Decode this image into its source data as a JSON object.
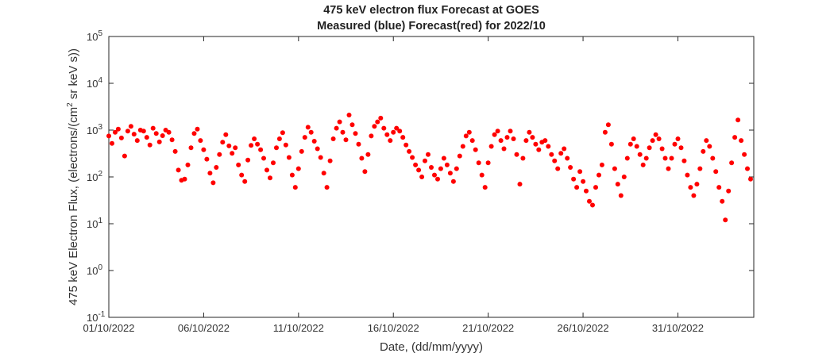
{
  "chart_data": {
    "type": "scatter",
    "title": "475 keV electron flux Forecast at GOES",
    "subtitle": "Measured (blue) Forecast(red) for 2022/10",
    "xlabel": "Date, (dd/mm/yyyy)",
    "ylabel": "475 keV Electron Flux, (electrons/(cm^2 sr keV s))",
    "ylabel_parts": {
      "base": "10",
      "before": "475 keV Electron Flux, (electrons/(cm",
      "sup": "2",
      "after": " sr keV s))"
    },
    "y_scale": "log",
    "xlim": [
      "2022-10-01",
      "2022-11-04"
    ],
    "ylim": [
      0.1,
      100000
    ],
    "grid": false,
    "x_ticks": [
      {
        "date": "2022-10-01",
        "label": "01/10/2022"
      },
      {
        "date": "2022-10-06",
        "label": "06/10/2022"
      },
      {
        "date": "2022-10-11",
        "label": "11/10/2022"
      },
      {
        "date": "2022-10-16",
        "label": "16/10/2022"
      },
      {
        "date": "2022-10-21",
        "label": "21/10/2022"
      },
      {
        "date": "2022-10-26",
        "label": "26/10/2022"
      },
      {
        "date": "2022-10-31",
        "label": "31/10/2022"
      }
    ],
    "y_ticks": [
      {
        "value": 0.1,
        "exp": "-1"
      },
      {
        "value": 1,
        "exp": "0"
      },
      {
        "value": 10,
        "exp": "1"
      },
      {
        "value": 100,
        "exp": "2"
      },
      {
        "value": 1000,
        "exp": "3"
      },
      {
        "value": 10000,
        "exp": "4"
      },
      {
        "value": 100000,
        "exp": "5"
      }
    ],
    "series": [
      {
        "color": "#ff0000",
        "points": [
          [
            "2022-10-01 00:00",
            750
          ],
          [
            "2022-10-01 04:00",
            520
          ],
          [
            "2022-10-01 08:00",
            900
          ],
          [
            "2022-10-01 12:00",
            1050
          ],
          [
            "2022-10-01 16:00",
            680
          ],
          [
            "2022-10-01 20:00",
            280
          ],
          [
            "2022-10-02 00:00",
            950
          ],
          [
            "2022-10-02 04:00",
            1200
          ],
          [
            "2022-10-02 08:00",
            820
          ],
          [
            "2022-10-02 12:00",
            600
          ],
          [
            "2022-10-02 16:00",
            1000
          ],
          [
            "2022-10-02 20:00",
            950
          ],
          [
            "2022-10-03 00:00",
            700
          ],
          [
            "2022-10-03 04:00",
            480
          ],
          [
            "2022-10-03 08:00",
            1100
          ],
          [
            "2022-10-03 12:00",
            850
          ],
          [
            "2022-10-03 16:00",
            560
          ],
          [
            "2022-10-03 20:00",
            760
          ],
          [
            "2022-10-04 00:00",
            1000
          ],
          [
            "2022-10-04 04:00",
            900
          ],
          [
            "2022-10-04 08:00",
            620
          ],
          [
            "2022-10-04 12:00",
            350
          ],
          [
            "2022-10-04 16:00",
            140
          ],
          [
            "2022-10-04 20:00",
            85
          ],
          [
            "2022-10-05 00:00",
            90
          ],
          [
            "2022-10-05 04:00",
            180
          ],
          [
            "2022-10-05 08:00",
            420
          ],
          [
            "2022-10-05 12:00",
            850
          ],
          [
            "2022-10-05 16:00",
            1050
          ],
          [
            "2022-10-05 20:00",
            600
          ],
          [
            "2022-10-06 00:00",
            380
          ],
          [
            "2022-10-06 04:00",
            240
          ],
          [
            "2022-10-06 08:00",
            120
          ],
          [
            "2022-10-06 12:00",
            75
          ],
          [
            "2022-10-06 16:00",
            160
          ],
          [
            "2022-10-06 20:00",
            300
          ],
          [
            "2022-10-07 00:00",
            550
          ],
          [
            "2022-10-07 04:00",
            800
          ],
          [
            "2022-10-07 08:00",
            460
          ],
          [
            "2022-10-07 12:00",
            320
          ],
          [
            "2022-10-07 16:00",
            420
          ],
          [
            "2022-10-07 20:00",
            180
          ],
          [
            "2022-10-08 00:00",
            110
          ],
          [
            "2022-10-08 04:00",
            80
          ],
          [
            "2022-10-08 08:00",
            230
          ],
          [
            "2022-10-08 12:00",
            470
          ],
          [
            "2022-10-08 16:00",
            650
          ],
          [
            "2022-10-08 20:00",
            500
          ],
          [
            "2022-10-09 00:00",
            380
          ],
          [
            "2022-10-09 04:00",
            250
          ],
          [
            "2022-10-09 08:00",
            140
          ],
          [
            "2022-10-09 12:00",
            95
          ],
          [
            "2022-10-09 16:00",
            200
          ],
          [
            "2022-10-09 20:00",
            420
          ],
          [
            "2022-10-10 00:00",
            650
          ],
          [
            "2022-10-10 04:00",
            880
          ],
          [
            "2022-10-10 08:00",
            480
          ],
          [
            "2022-10-10 12:00",
            260
          ],
          [
            "2022-10-10 16:00",
            110
          ],
          [
            "2022-10-10 20:00",
            60
          ],
          [
            "2022-10-11 00:00",
            150
          ],
          [
            "2022-10-11 04:00",
            350
          ],
          [
            "2022-10-11 08:00",
            700
          ],
          [
            "2022-10-11 12:00",
            1150
          ],
          [
            "2022-10-11 16:00",
            900
          ],
          [
            "2022-10-11 20:00",
            580
          ],
          [
            "2022-10-12 00:00",
            400
          ],
          [
            "2022-10-12 04:00",
            260
          ],
          [
            "2022-10-12 08:00",
            120
          ],
          [
            "2022-10-12 12:00",
            60
          ],
          [
            "2022-10-12 16:00",
            220
          ],
          [
            "2022-10-12 20:00",
            650
          ],
          [
            "2022-10-13 00:00",
            1100
          ],
          [
            "2022-10-13 04:00",
            1500
          ],
          [
            "2022-10-13 08:00",
            900
          ],
          [
            "2022-10-13 12:00",
            620
          ],
          [
            "2022-10-13 16:00",
            2100
          ],
          [
            "2022-10-13 20:00",
            1300
          ],
          [
            "2022-10-14 00:00",
            850
          ],
          [
            "2022-10-14 04:00",
            500
          ],
          [
            "2022-10-14 08:00",
            250
          ],
          [
            "2022-10-14 12:00",
            130
          ],
          [
            "2022-10-14 16:00",
            300
          ],
          [
            "2022-10-14 20:00",
            750
          ],
          [
            "2022-10-15 00:00",
            1200
          ],
          [
            "2022-10-15 04:00",
            1500
          ],
          [
            "2022-10-15 08:00",
            1800
          ],
          [
            "2022-10-15 12:00",
            1100
          ],
          [
            "2022-10-15 16:00",
            800
          ],
          [
            "2022-10-15 20:00",
            600
          ],
          [
            "2022-10-16 00:00",
            900
          ],
          [
            "2022-10-16 04:00",
            1100
          ],
          [
            "2022-10-16 08:00",
            950
          ],
          [
            "2022-10-16 12:00",
            700
          ],
          [
            "2022-10-16 16:00",
            480
          ],
          [
            "2022-10-16 20:00",
            350
          ],
          [
            "2022-10-17 00:00",
            260
          ],
          [
            "2022-10-17 04:00",
            180
          ],
          [
            "2022-10-17 08:00",
            140
          ],
          [
            "2022-10-17 12:00",
            100
          ],
          [
            "2022-10-17 16:00",
            220
          ],
          [
            "2022-10-17 20:00",
            300
          ],
          [
            "2022-10-18 00:00",
            160
          ],
          [
            "2022-10-18 04:00",
            110
          ],
          [
            "2022-10-18 08:00",
            90
          ],
          [
            "2022-10-18 12:00",
            150
          ],
          [
            "2022-10-18 16:00",
            250
          ],
          [
            "2022-10-18 20:00",
            180
          ],
          [
            "2022-10-19 00:00",
            120
          ],
          [
            "2022-10-19 04:00",
            80
          ],
          [
            "2022-10-19 08:00",
            150
          ],
          [
            "2022-10-19 12:00",
            280
          ],
          [
            "2022-10-19 16:00",
            450
          ],
          [
            "2022-10-19 20:00",
            750
          ],
          [
            "2022-10-20 00:00",
            900
          ],
          [
            "2022-10-20 04:00",
            600
          ],
          [
            "2022-10-20 08:00",
            380
          ],
          [
            "2022-10-20 12:00",
            200
          ],
          [
            "2022-10-20 16:00",
            110
          ],
          [
            "2022-10-20 20:00",
            60
          ],
          [
            "2022-10-21 00:00",
            200
          ],
          [
            "2022-10-21 04:00",
            450
          ],
          [
            "2022-10-21 08:00",
            800
          ],
          [
            "2022-10-21 12:00",
            950
          ],
          [
            "2022-10-21 16:00",
            600
          ],
          [
            "2022-10-21 20:00",
            400
          ],
          [
            "2022-10-22 00:00",
            700
          ],
          [
            "2022-10-22 04:00",
            950
          ],
          [
            "2022-10-22 08:00",
            650
          ],
          [
            "2022-10-22 12:00",
            300
          ],
          [
            "2022-10-22 16:00",
            70
          ],
          [
            "2022-10-22 20:00",
            250
          ],
          [
            "2022-10-23 00:00",
            600
          ],
          [
            "2022-10-23 04:00",
            900
          ],
          [
            "2022-10-23 08:00",
            700
          ],
          [
            "2022-10-23 12:00",
            500
          ],
          [
            "2022-10-23 16:00",
            380
          ],
          [
            "2022-10-23 20:00",
            550
          ],
          [
            "2022-10-24 00:00",
            600
          ],
          [
            "2022-10-24 04:00",
            450
          ],
          [
            "2022-10-24 08:00",
            300
          ],
          [
            "2022-10-24 12:00",
            220
          ],
          [
            "2022-10-24 16:00",
            150
          ],
          [
            "2022-10-24 20:00",
            320
          ],
          [
            "2022-10-25 00:00",
            400
          ],
          [
            "2022-10-25 04:00",
            250
          ],
          [
            "2022-10-25 08:00",
            160
          ],
          [
            "2022-10-25 12:00",
            90
          ],
          [
            "2022-10-25 16:00",
            60
          ],
          [
            "2022-10-25 20:00",
            130
          ],
          [
            "2022-10-26 00:00",
            80
          ],
          [
            "2022-10-26 04:00",
            50
          ],
          [
            "2022-10-26 08:00",
            30
          ],
          [
            "2022-10-26 12:00",
            25
          ],
          [
            "2022-10-26 16:00",
            60
          ],
          [
            "2022-10-26 20:00",
            110
          ],
          [
            "2022-10-27 00:00",
            180
          ],
          [
            "2022-10-27 04:00",
            900
          ],
          [
            "2022-10-27 08:00",
            1300
          ],
          [
            "2022-10-27 12:00",
            500
          ],
          [
            "2022-10-27 16:00",
            150
          ],
          [
            "2022-10-27 20:00",
            70
          ],
          [
            "2022-10-28 00:00",
            40
          ],
          [
            "2022-10-28 04:00",
            100
          ],
          [
            "2022-10-28 08:00",
            250
          ],
          [
            "2022-10-28 12:00",
            500
          ],
          [
            "2022-10-28 16:00",
            650
          ],
          [
            "2022-10-28 20:00",
            450
          ],
          [
            "2022-10-29 00:00",
            300
          ],
          [
            "2022-10-29 04:00",
            180
          ],
          [
            "2022-10-29 08:00",
            250
          ],
          [
            "2022-10-29 12:00",
            420
          ],
          [
            "2022-10-29 16:00",
            600
          ],
          [
            "2022-10-29 20:00",
            800
          ],
          [
            "2022-10-30 00:00",
            650
          ],
          [
            "2022-10-30 04:00",
            400
          ],
          [
            "2022-10-30 08:00",
            250
          ],
          [
            "2022-10-30 12:00",
            150
          ],
          [
            "2022-10-30 16:00",
            250
          ],
          [
            "2022-10-30 20:00",
            500
          ],
          [
            "2022-10-31 00:00",
            650
          ],
          [
            "2022-10-31 04:00",
            420
          ],
          [
            "2022-10-31 08:00",
            220
          ],
          [
            "2022-10-31 12:00",
            110
          ],
          [
            "2022-10-31 16:00",
            60
          ],
          [
            "2022-10-31 20:00",
            40
          ],
          [
            "2022-11-01 00:00",
            70
          ],
          [
            "2022-11-01 04:00",
            150
          ],
          [
            "2022-11-01 08:00",
            350
          ],
          [
            "2022-11-01 12:00",
            600
          ],
          [
            "2022-11-01 16:00",
            450
          ],
          [
            "2022-11-01 20:00",
            250
          ],
          [
            "2022-11-02 00:00",
            130
          ],
          [
            "2022-11-02 04:00",
            60
          ],
          [
            "2022-11-02 08:00",
            30
          ],
          [
            "2022-11-02 12:00",
            12
          ],
          [
            "2022-11-02 16:00",
            50
          ],
          [
            "2022-11-02 20:00",
            200
          ],
          [
            "2022-11-03 00:00",
            700
          ],
          [
            "2022-11-03 04:00",
            1650
          ],
          [
            "2022-11-03 08:00",
            600
          ],
          [
            "2022-11-03 12:00",
            300
          ],
          [
            "2022-11-03 16:00",
            150
          ],
          [
            "2022-11-03 20:00",
            90
          ]
        ]
      }
    ]
  }
}
